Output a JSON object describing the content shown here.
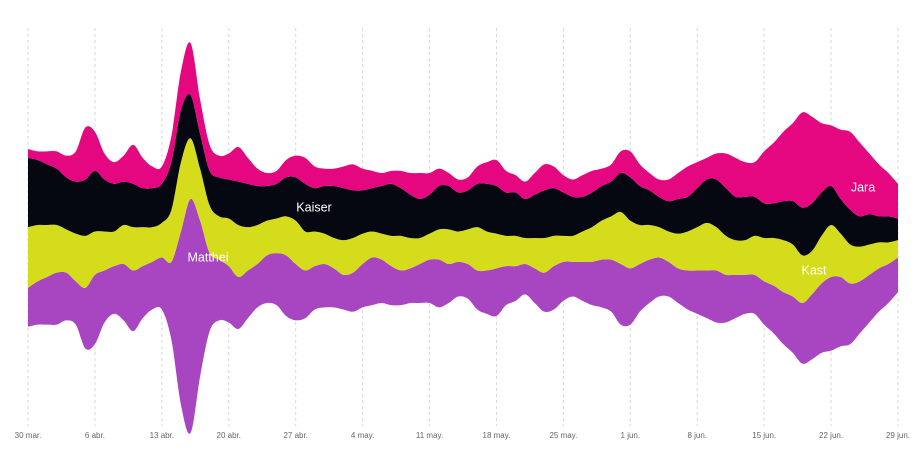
{
  "chart_data": {
    "type": "streamgraph",
    "categories": [
      "30 mar.",
      null,
      null,
      null,
      null,
      null,
      null,
      "6 abr.",
      null,
      null,
      null,
      null,
      null,
      null,
      "13 abr.",
      null,
      null,
      null,
      null,
      null,
      null,
      "20 abr.",
      null,
      null,
      null,
      null,
      null,
      null,
      "27 abr.",
      null,
      null,
      null,
      null,
      null,
      null,
      "4 may.",
      null,
      null,
      null,
      null,
      null,
      null,
      "11 may.",
      null,
      null,
      null,
      null,
      null,
      null,
      "18 may.",
      null,
      null,
      null,
      null,
      null,
      null,
      "25 may.",
      null,
      null,
      null,
      null,
      null,
      null,
      "1 jun.",
      null,
      null,
      null,
      null,
      null,
      null,
      "8 jun.",
      null,
      null,
      null,
      null,
      null,
      null,
      "15 jun.",
      null,
      null,
      null,
      null,
      null,
      null,
      "22 jun.",
      null,
      null,
      null,
      null,
      null,
      null,
      "29 jun."
    ],
    "series": [
      {
        "name": "Matthei",
        "color": "#a845c0",
        "values": [
          45,
          50,
          55,
          60,
          55,
          50,
          70,
          80,
          60,
          55,
          65,
          70,
          60,
          55,
          60,
          90,
          200,
          270,
          180,
          90,
          70,
          65,
          60,
          55,
          50,
          55,
          60,
          70,
          65,
          55,
          50,
          50,
          45,
          40,
          45,
          50,
          55,
          50,
          45,
          40,
          40,
          45,
          50,
          55,
          45,
          40,
          40,
          45,
          50,
          55,
          45,
          40,
          35,
          40,
          45,
          50,
          45,
          40,
          45,
          50,
          55,
          60,
          70,
          65,
          55,
          50,
          45,
          40,
          40,
          45,
          50,
          55,
          60,
          55,
          50,
          45,
          45,
          50,
          55,
          60,
          65,
          70,
          75,
          80,
          85,
          80,
          70,
          60,
          55,
          50,
          45,
          40
        ]
      },
      {
        "name": "Kast",
        "color": "#d4dc1c",
        "values": [
          70,
          65,
          60,
          55,
          50,
          55,
          60,
          50,
          45,
          40,
          45,
          50,
          45,
          40,
          40,
          60,
          80,
          70,
          60,
          55,
          50,
          55,
          60,
          50,
          45,
          40,
          40,
          45,
          50,
          45,
          40,
          35,
          35,
          40,
          40,
          35,
          30,
          30,
          35,
          40,
          35,
          30,
          30,
          35,
          40,
          35,
          40,
          50,
          45,
          40,
          35,
          35,
          30,
          35,
          40,
          35,
          30,
          30,
          35,
          40,
          45,
          50,
          60,
          55,
          45,
          40,
          35,
          35,
          40,
          45,
          50,
          55,
          50,
          45,
          40,
          40,
          45,
          50,
          55,
          60,
          60,
          55,
          50,
          55,
          60,
          50,
          45,
          40,
          35,
          30,
          25,
          20
        ]
      },
      {
        "name": "Kaiser",
        "color": "#050810",
        "values": [
          80,
          75,
          70,
          65,
          60,
          60,
          65,
          70,
          60,
          55,
          50,
          50,
          45,
          45,
          45,
          55,
          60,
          50,
          40,
          40,
          45,
          45,
          50,
          50,
          45,
          40,
          40,
          45,
          50,
          55,
          50,
          55,
          60,
          60,
          55,
          50,
          50,
          55,
          60,
          55,
          50,
          45,
          45,
          50,
          50,
          45,
          45,
          50,
          55,
          55,
          50,
          50,
          45,
          50,
          55,
          55,
          50,
          45,
          40,
          40,
          40,
          40,
          45,
          50,
          45,
          40,
          35,
          35,
          40,
          40,
          45,
          50,
          55,
          55,
          50,
          50,
          45,
          40,
          40,
          45,
          50,
          55,
          55,
          50,
          45,
          40,
          40,
          35,
          35,
          30,
          30,
          25
        ]
      },
      {
        "name": "Jara",
        "color": "#e5077f",
        "values": [
          10,
          10,
          15,
          20,
          25,
          35,
          60,
          45,
          30,
          25,
          30,
          45,
          35,
          25,
          20,
          30,
          45,
          60,
          40,
          30,
          25,
          30,
          40,
          30,
          20,
          15,
          15,
          20,
          25,
          30,
          25,
          20,
          20,
          25,
          30,
          25,
          20,
          15,
          15,
          20,
          25,
          30,
          25,
          20,
          15,
          15,
          15,
          20,
          25,
          30,
          25,
          20,
          20,
          25,
          30,
          25,
          20,
          20,
          25,
          25,
          20,
          20,
          25,
          30,
          25,
          20,
          20,
          25,
          30,
          35,
          30,
          25,
          30,
          40,
          45,
          40,
          40,
          60,
          70,
          80,
          90,
          110,
          100,
          80,
          70,
          80,
          90,
          85,
          70,
          60,
          50,
          40
        ]
      }
    ]
  }
}
